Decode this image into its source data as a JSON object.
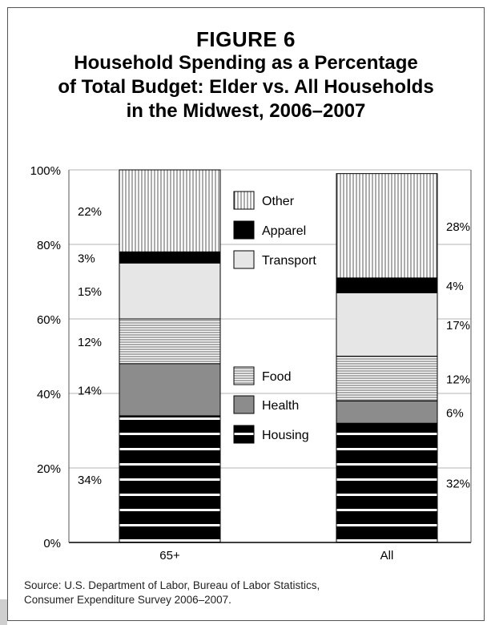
{
  "figure_label": "FIGURE 6",
  "title_lines": [
    "Household Spending as a Percentage",
    "of Total Budget: Elder vs. All Households",
    "in the Midwest, 2006–2007"
  ],
  "source_lines": [
    "Source: U.S. Department of Labor, Bureau of Labor Statistics,",
    "Consumer Expenditure Survey 2006–2007."
  ],
  "chart_data": {
    "type": "bar",
    "stacked": true,
    "categories": [
      "65+",
      "All"
    ],
    "ylim": [
      0,
      100
    ],
    "yticks": [
      "0%",
      "20%",
      "40%",
      "60%",
      "80%",
      "100%"
    ],
    "grid": true,
    "legend_placement": "between bars",
    "series": [
      {
        "name": "Housing",
        "values": [
          34,
          32
        ],
        "labels": [
          "34%",
          "32%"
        ],
        "pattern": "housing"
      },
      {
        "name": "Health",
        "values": [
          14,
          6
        ],
        "labels": [
          "14%",
          "6%"
        ],
        "pattern": "health"
      },
      {
        "name": "Food",
        "values": [
          12,
          12
        ],
        "labels": [
          "12%",
          "12%"
        ],
        "pattern": "food"
      },
      {
        "name": "Transport",
        "values": [
          15,
          17
        ],
        "labels": [
          "15%",
          "17%"
        ],
        "pattern": "transport"
      },
      {
        "name": "Apparel",
        "values": [
          3,
          4
        ],
        "labels": [
          "3%",
          "4%"
        ],
        "pattern": "apparel"
      },
      {
        "name": "Other",
        "values": [
          22,
          28
        ],
        "labels": [
          "22%",
          "28%"
        ],
        "pattern": "other"
      }
    ]
  }
}
